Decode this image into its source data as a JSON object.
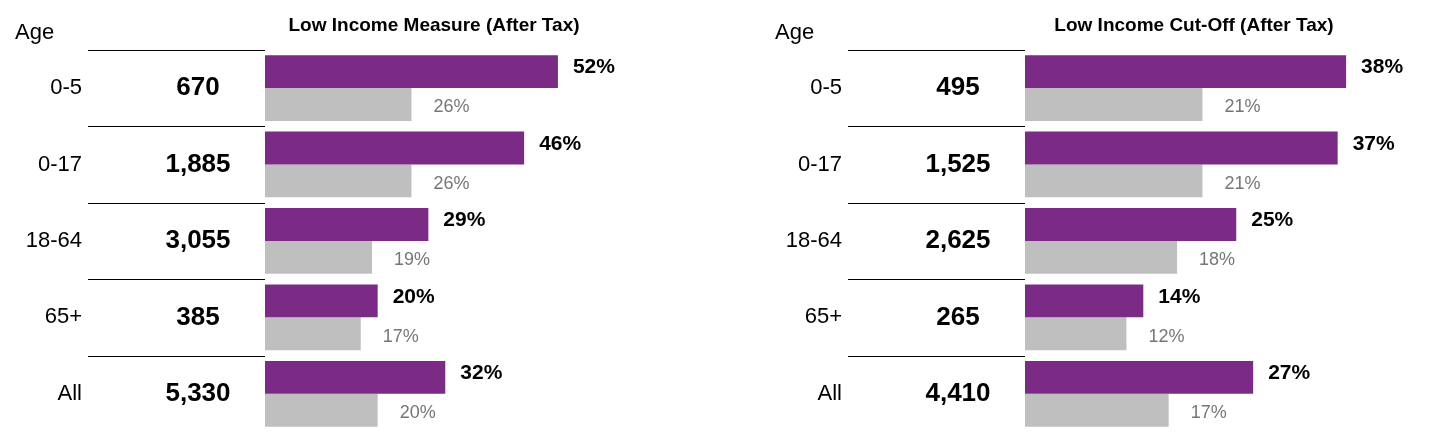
{
  "chart_data": [
    {
      "type": "bar",
      "orientation": "horizontal",
      "title": "Low Income Measure (After Tax)",
      "ylabel": "Age",
      "categories": [
        "0-5",
        "0-17",
        "18-64",
        "65+",
        "All"
      ],
      "series": [
        {
          "color": "#7b2a85",
          "values": [
            52,
            46,
            29,
            20,
            32
          ],
          "value_labels": [
            "52%",
            "46%",
            "29%",
            "20%",
            "32%"
          ]
        },
        {
          "color": "#bfbfbf",
          "values": [
            26,
            26,
            19,
            17,
            20
          ],
          "value_labels": [
            "26%",
            "26%",
            "19%",
            "17%",
            "20%"
          ]
        }
      ],
      "tick_labels": "y",
      "legend": false,
      "annotations": [
        "670",
        "1,885",
        "3,055",
        "385",
        "5,330"
      ]
    },
    {
      "type": "bar",
      "orientation": "horizontal",
      "title": "Low Income Cut-Off (After Tax)",
      "ylabel": "Age",
      "categories": [
        "0-5",
        "0-17",
        "18-64",
        "65+",
        "All"
      ],
      "series": [
        {
          "color": "#7b2a85",
          "values": [
            38,
            37,
            25,
            14,
            27
          ],
          "value_labels": [
            "38%",
            "37%",
            "25%",
            "14%",
            "27%"
          ]
        },
        {
          "color": "#bfbfbf",
          "values": [
            21,
            21,
            18,
            12,
            17
          ],
          "value_labels": [
            "21%",
            "21%",
            "18%",
            "12%",
            "17%"
          ]
        }
      ],
      "tick_labels": "y",
      "legend": false,
      "annotations": [
        "495",
        "1,525",
        "2,625",
        "265",
        "4,410"
      ]
    }
  ]
}
